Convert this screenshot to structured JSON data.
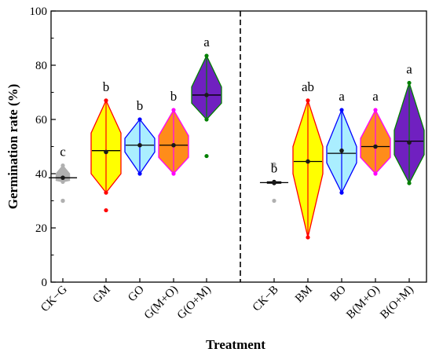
{
  "chart_data": {
    "type": "violin",
    "title": "",
    "xlabel": "Treatment",
    "ylabel": "Germination rate (%)",
    "ylim": [
      0,
      100
    ],
    "yticks": [
      0,
      20,
      40,
      60,
      80,
      100
    ],
    "grid": false,
    "legend": "none",
    "divider": "dashed vertical line between G(O+M) and CK−B",
    "groups": [
      {
        "label": "CK−G",
        "letter": "c",
        "color": "#b0b0b0",
        "edge": "#b0b0b0",
        "min": 37,
        "q1": 37.5,
        "median": 38.5,
        "q3": 40,
        "max": 43,
        "mean": 38.5,
        "outliers": [
          30,
          30
        ]
      },
      {
        "label": "GM",
        "letter": "b",
        "color": "#ffff00",
        "edge": "#ff0000",
        "min": 33,
        "q1": 40,
        "median": 48.5,
        "q3": 55,
        "max": 67,
        "mean": 48,
        "outliers": [
          26.5
        ]
      },
      {
        "label": "GO",
        "letter": "b",
        "color": "#aaeeff",
        "edge": "#0000ff",
        "min": 40,
        "q1": 48,
        "median": 50.5,
        "q3": 53,
        "max": 60,
        "mean": 50.5,
        "outliers": []
      },
      {
        "label": "G(M+O)",
        "letter": "b",
        "color": "#ff8c1a",
        "edge": "#ff00ff",
        "min": 40,
        "q1": 46,
        "median": 50.5,
        "q3": 54,
        "max": 63.5,
        "mean": 50.5,
        "outliers": []
      },
      {
        "label": "G(O+M)",
        "letter": "a",
        "color": "#7020c0",
        "edge": "#008000",
        "min": 60,
        "q1": 66,
        "median": 69,
        "q3": 72,
        "max": 83.5,
        "mean": 69,
        "outliers": [
          46.5
        ]
      },
      {
        "label": "CK−B",
        "letter": "b",
        "color": "#b0b0b0",
        "edge": "#000000",
        "min": 36.5,
        "q1": 36.5,
        "median": 36.7,
        "q3": 37,
        "max": 37,
        "mean": 36.7,
        "outliers": [
          43.5,
          30
        ]
      },
      {
        "label": "BM",
        "letter": "ab",
        "color": "#ffff00",
        "edge": "#ff0000",
        "min": 16.5,
        "q1": 40,
        "median": 44.5,
        "q3": 50,
        "max": 67,
        "mean": 44.5,
        "outliers": []
      },
      {
        "label": "BO",
        "letter": "a",
        "color": "#aaeeff",
        "edge": "#0000ff",
        "min": 33,
        "q1": 44,
        "median": 47.5,
        "q3": 50,
        "max": 63.5,
        "mean": 48.5,
        "outliers": []
      },
      {
        "label": "B(M+O)",
        "letter": "a",
        "color": "#ff8c1a",
        "edge": "#ff00ff",
        "min": 40,
        "q1": 46,
        "median": 50,
        "q3": 53,
        "max": 63.5,
        "mean": 50,
        "outliers": []
      },
      {
        "label": "B(O+M)",
        "letter": "a",
        "color": "#7020c0",
        "edge": "#008000",
        "min": 36.5,
        "q1": 47,
        "median": 52,
        "q3": 56,
        "max": 73.5,
        "mean": 51.5,
        "outliers": []
      }
    ]
  }
}
